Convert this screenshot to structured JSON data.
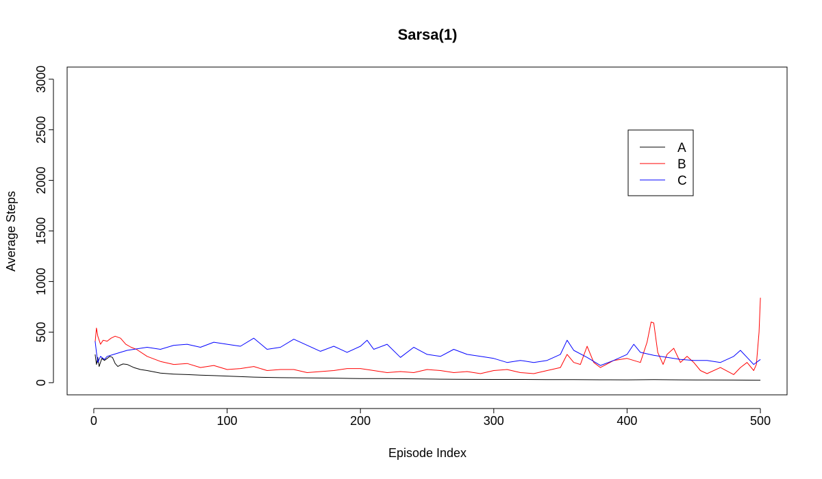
{
  "chart_data": {
    "type": "line",
    "title": "Sarsa(1)",
    "xlabel": "Episode Index",
    "ylabel": "Average Steps",
    "xlim": [
      -20,
      520
    ],
    "ylim": [
      -120,
      3120
    ],
    "xticks": [
      0,
      100,
      200,
      300,
      400,
      500
    ],
    "yticks": [
      0,
      500,
      1000,
      1500,
      2000,
      2500,
      3000
    ],
    "grid": false,
    "legend_position": "top-right",
    "series": [
      {
        "name": "A",
        "color": "#000000",
        "x": [
          1,
          2,
          3,
          4,
          5,
          6,
          8,
          10,
          12,
          14,
          16,
          18,
          20,
          22,
          25,
          30,
          35,
          40,
          50,
          60,
          70,
          80,
          90,
          100,
          120,
          140,
          160,
          180,
          200,
          220,
          240,
          260,
          280,
          300,
          320,
          340,
          360,
          380,
          400,
          420,
          440,
          460,
          480,
          500
        ],
        "y": [
          280,
          180,
          250,
          160,
          200,
          240,
          220,
          240,
          260,
          250,
          190,
          160,
          175,
          185,
          180,
          150,
          130,
          120,
          95,
          85,
          80,
          75,
          70,
          65,
          55,
          50,
          48,
          45,
          40,
          40,
          38,
          35,
          33,
          32,
          32,
          30,
          30,
          29,
          28,
          30,
          28,
          27,
          26,
          25
        ]
      },
      {
        "name": "B",
        "color": "#ff0000",
        "x": [
          1,
          2,
          3,
          5,
          7,
          10,
          13,
          16,
          20,
          24,
          28,
          32,
          40,
          50,
          60,
          70,
          80,
          90,
          100,
          110,
          120,
          130,
          140,
          150,
          160,
          170,
          180,
          190,
          200,
          210,
          220,
          230,
          240,
          250,
          260,
          270,
          280,
          290,
          300,
          310,
          320,
          330,
          340,
          350,
          355,
          360,
          365,
          370,
          375,
          380,
          390,
          400,
          410,
          415,
          418,
          420,
          423,
          427,
          430,
          435,
          440,
          445,
          450,
          455,
          460,
          470,
          480,
          485,
          490,
          495,
          497,
          499,
          500
        ],
        "y": [
          400,
          540,
          460,
          380,
          420,
          410,
          440,
          460,
          440,
          380,
          350,
          330,
          260,
          210,
          180,
          190,
          150,
          170,
          130,
          140,
          160,
          120,
          130,
          130,
          100,
          110,
          120,
          140,
          140,
          120,
          100,
          110,
          100,
          130,
          120,
          100,
          110,
          90,
          120,
          130,
          100,
          90,
          120,
          150,
          280,
          200,
          180,
          360,
          200,
          150,
          220,
          240,
          200,
          400,
          600,
          590,
          300,
          180,
          280,
          340,
          200,
          260,
          200,
          120,
          90,
          150,
          80,
          150,
          200,
          120,
          180,
          500,
          840
        ]
      },
      {
        "name": "C",
        "color": "#0000ff",
        "x": [
          1,
          2,
          3,
          5,
          8,
          10,
          15,
          20,
          25,
          30,
          40,
          50,
          60,
          70,
          80,
          90,
          100,
          110,
          120,
          130,
          140,
          150,
          160,
          170,
          180,
          190,
          200,
          205,
          210,
          220,
          230,
          240,
          250,
          260,
          270,
          280,
          290,
          300,
          310,
          320,
          330,
          340,
          350,
          355,
          360,
          370,
          380,
          390,
          400,
          405,
          410,
          420,
          430,
          440,
          450,
          460,
          470,
          480,
          485,
          490,
          495,
          500
        ],
        "y": [
          410,
          300,
          200,
          260,
          230,
          260,
          280,
          300,
          320,
          330,
          350,
          330,
          370,
          380,
          350,
          400,
          380,
          360,
          440,
          330,
          350,
          430,
          370,
          310,
          360,
          300,
          360,
          420,
          330,
          380,
          250,
          350,
          280,
          260,
          330,
          280,
          260,
          240,
          200,
          220,
          200,
          220,
          280,
          420,
          320,
          250,
          170,
          220,
          280,
          380,
          300,
          270,
          250,
          230,
          220,
          220,
          200,
          260,
          320,
          250,
          180,
          230
        ]
      }
    ]
  }
}
